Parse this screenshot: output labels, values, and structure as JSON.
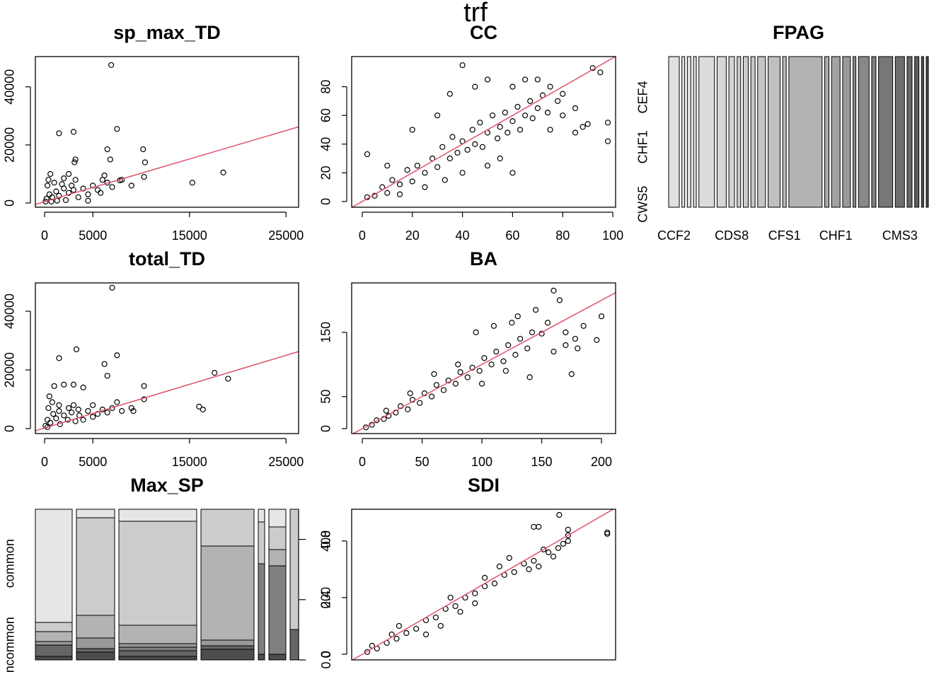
{
  "title": "trf",
  "chart_data": [
    {
      "type": "scatter",
      "title": "sp_max_TD",
      "x": [
        200,
        500,
        800,
        1200,
        300,
        1500,
        2000,
        2500,
        3000,
        3500,
        400,
        600,
        1000,
        1800,
        2200,
        2800,
        3200,
        4000,
        4500,
        5000,
        5500,
        6000,
        6500,
        7000,
        8000,
        9000,
        1500,
        3000,
        3100,
        2500,
        3200,
        6500,
        6800,
        7500,
        10200,
        10400,
        10300,
        15300,
        18500,
        6900,
        2000,
        6200,
        7800,
        100,
        700,
        1300,
        4500,
        5800
      ],
      "values": [
        1500,
        3000,
        2000,
        4000,
        6000,
        2500,
        5000,
        3500,
        4500,
        2000,
        8000,
        10000,
        7000,
        6500,
        1000,
        6000,
        8000,
        5000,
        3000,
        6000,
        4500,
        8000,
        7000,
        5500,
        8000,
        6000,
        24000,
        24500,
        14000,
        10000,
        15000,
        18500,
        15000,
        25500,
        18500,
        14000,
        9000,
        7000,
        10500,
        47500,
        8500,
        9500,
        7800,
        500,
        500,
        800,
        800,
        3500
      ],
      "xlim": [
        -950,
        26300
      ],
      "ylim": [
        -1450,
        50400
      ],
      "xticks": [
        0,
        5000,
        15000,
        25000
      ],
      "yticks": [
        0,
        20000,
        40000
      ],
      "fit": {
        "intercept": 450,
        "slope": 0.98,
        "color": "#DF536B"
      }
    },
    {
      "type": "scatter",
      "title": "CC",
      "x": [
        2,
        5,
        8,
        10,
        12,
        15,
        18,
        20,
        22,
        25,
        28,
        30,
        32,
        35,
        36,
        38,
        40,
        42,
        44,
        45,
        47,
        48,
        50,
        52,
        54,
        55,
        57,
        58,
        60,
        62,
        63,
        65,
        67,
        68,
        70,
        72,
        74,
        75,
        78,
        80,
        85,
        90,
        92,
        95,
        98,
        98,
        2,
        10,
        20,
        30,
        35,
        40,
        45,
        50,
        60,
        65,
        70,
        75,
        80,
        85,
        88,
        15,
        25,
        33,
        40,
        50,
        55,
        60
      ],
      "values": [
        3,
        4,
        10,
        6,
        15,
        12,
        22,
        14,
        25,
        20,
        30,
        24,
        38,
        30,
        45,
        34,
        42,
        36,
        50,
        40,
        55,
        38,
        48,
        60,
        44,
        52,
        62,
        48,
        56,
        66,
        50,
        60,
        70,
        58,
        65,
        74,
        62,
        80,
        70,
        60,
        48,
        54,
        93,
        90,
        55,
        42,
        33,
        25,
        50,
        60,
        75,
        95,
        80,
        85,
        80,
        85,
        85,
        50,
        75,
        65,
        52,
        5,
        10,
        15,
        20,
        25,
        30,
        20
      ],
      "xlim": [
        -4.2,
        101.1
      ],
      "ylim": [
        -4,
        101
      ],
      "xticks": [
        0,
        20,
        40,
        60,
        80,
        100
      ],
      "yticks": [
        0,
        20,
        40,
        60,
        80
      ],
      "fit": {
        "intercept": 0,
        "slope": 1,
        "color": "#DF536B"
      }
    },
    {
      "type": "spineplot",
      "title": "FPAG",
      "categories": [
        "CCF2",
        null,
        null,
        null,
        null,
        null,
        "CDS8",
        null,
        null,
        null,
        null,
        null,
        "CFS1",
        null,
        null,
        "CHF1",
        null,
        null,
        null,
        null,
        null,
        "CMS3",
        null,
        null,
        null,
        null
      ],
      "widths": [
        15,
        4,
        5,
        4,
        22,
        13,
        8,
        5,
        7,
        6,
        11,
        17,
        5,
        47,
        6,
        12,
        11,
        4,
        15,
        6,
        20,
        13,
        7,
        6,
        3,
        3
      ],
      "colors": [
        "#e0e0e0",
        "#e0e0e0",
        "#e0e0e0",
        "#dedede",
        "#dcdcdc",
        "#d6d6d6",
        "#d3d3d3",
        "#cfcfcf",
        "#cccccc",
        "#c9c9c9",
        "#c5c5c5",
        "#bfbfbf",
        "#bbbbbb",
        "#b3b3b3",
        "#aaaaaa",
        "#a3a3a3",
        "#999999",
        "#909090",
        "#888888",
        "#808080",
        "#777777",
        "#6e6e6e",
        "#666666",
        "#5e5e5e",
        "#555555",
        "#4d4d4d"
      ],
      "y_categories": [
        "CWS5",
        "CHF1",
        "CEF4"
      ]
    },
    {
      "type": "scatter",
      "title": "total_TD",
      "x": [
        7000,
        1500,
        3300,
        7500,
        6200,
        6500,
        10300,
        10300,
        16000,
        16400,
        17600,
        19000,
        2000,
        3000,
        4000,
        500,
        1000,
        1500,
        3000,
        5000,
        7500,
        8000,
        9000,
        9200,
        100,
        300,
        600,
        900,
        1200,
        1600,
        2000,
        2400,
        2800,
        3200,
        3600,
        4000,
        4500,
        5000,
        5500,
        6000,
        6500,
        7000,
        400,
        800,
        2500,
        300,
        1500,
        3500
      ],
      "values": [
        48000,
        24000,
        27000,
        25000,
        22000,
        18000,
        14500,
        10000,
        7500,
        6500,
        19000,
        17000,
        15000,
        15000,
        14000,
        11000,
        14500,
        8000,
        8000,
        8000,
        9000,
        6000,
        7000,
        6000,
        1000,
        3000,
        2000,
        5000,
        3500,
        1500,
        4500,
        3000,
        5500,
        2500,
        4500,
        3000,
        6000,
        4000,
        5000,
        6500,
        5500,
        7000,
        7000,
        9000,
        7000,
        500,
        6000,
        6500
      ],
      "xlim": [
        -950,
        26300
      ],
      "ylim": [
        -1690,
        49640
      ],
      "xticks": [
        0,
        5000,
        15000,
        25000
      ],
      "yticks": [
        0,
        20000,
        40000
      ],
      "fit": {
        "intercept": 220,
        "slope": 0.99,
        "color": "#DF536B"
      }
    },
    {
      "type": "scatter",
      "title": "BA",
      "x": [
        3,
        8,
        12,
        18,
        22,
        28,
        32,
        38,
        42,
        48,
        52,
        58,
        62,
        68,
        72,
        78,
        82,
        88,
        92,
        98,
        102,
        108,
        112,
        118,
        122,
        128,
        132,
        138,
        142,
        150,
        160,
        170,
        178,
        180,
        200,
        196,
        160,
        165,
        125,
        120,
        140,
        175,
        95,
        110,
        100,
        80,
        60,
        40,
        20,
        130,
        145,
        155,
        170,
        185
      ],
      "values": [
        2,
        6,
        13,
        15,
        20,
        25,
        35,
        30,
        45,
        40,
        55,
        50,
        68,
        60,
        75,
        70,
        88,
        80,
        95,
        90,
        110,
        100,
        120,
        105,
        130,
        115,
        140,
        125,
        150,
        148,
        120,
        150,
        140,
        125,
        175,
        138,
        215,
        200,
        165,
        90,
        80,
        85,
        150,
        160,
        70,
        100,
        85,
        55,
        28,
        175,
        185,
        165,
        130,
        160
      ],
      "xlim": [
        -8.9,
        211.8
      ],
      "ylim": [
        -7.7,
        227
      ],
      "xticks": [
        0,
        50,
        100,
        150,
        200
      ],
      "yticks": [
        0,
        50,
        150
      ],
      "fit": {
        "intercept": 0,
        "slope": 1,
        "color": "#DF536B"
      }
    },
    {
      "type": "spineplot",
      "title": "Max_SP",
      "widths": [
        52,
        54,
        110,
        75,
        9,
        24,
        12
      ],
      "segments": [
        [
          5,
          16,
          0,
          5,
          14,
          13,
          160
        ],
        [
          11,
          5,
          0,
          15,
          32,
          138,
          12
        ],
        [
          5,
          8,
          5,
          5,
          26,
          147,
          17
        ],
        [
          15,
          5,
          0,
          8,
          133,
          52,
          0
        ],
        [
          8,
          0,
          128,
          0,
          0,
          59,
          18
        ],
        [
          8,
          0,
          125,
          0,
          23,
          32,
          25
        ],
        [
          0,
          43,
          0,
          0,
          0,
          170,
          0
        ]
      ],
      "colors": [
        "#4d4d4d",
        "#666666",
        "#808080",
        "#999999",
        "#b3b3b3",
        "#cccccc",
        "#e6e6e6"
      ],
      "y_categories": [
        "ncommon",
        "common"
      ],
      "y2lim": [
        0,
        1
      ],
      "y2ticks": [
        {
          "value": 0,
          "label": "0.0"
        },
        {
          "value": 0.4,
          "label": "0.4"
        },
        {
          "value": 0.8,
          "label": "0.8"
        }
      ]
    },
    {
      "type": "scatter",
      "title": "SDI",
      "x": [
        10,
        30,
        50,
        70,
        90,
        110,
        130,
        150,
        170,
        190,
        210,
        230,
        250,
        270,
        290,
        310,
        330,
        340,
        350,
        360,
        370,
        380,
        390,
        400,
        410,
        420,
        350,
        360,
        420,
        420,
        500,
        500,
        402,
        130,
        160,
        230,
        300,
        280,
        250,
        180,
        200,
        60,
        20,
        75
      ],
      "values": [
        8,
        20,
        40,
        55,
        75,
        90,
        120,
        130,
        160,
        170,
        200,
        215,
        240,
        250,
        280,
        290,
        320,
        300,
        330,
        310,
        370,
        360,
        345,
        375,
        390,
        400,
        450,
        450,
        440,
        420,
        430,
        425,
        492,
        70,
        100,
        180,
        340,
        310,
        270,
        200,
        150,
        70,
        30,
        100
      ],
      "xlim": [
        -21.7,
        517
      ],
      "ylim": [
        -20,
        512
      ],
      "yticks": [
        0,
        200,
        400
      ],
      "fit": {
        "intercept": 0,
        "slope": 1,
        "color": "#DF536B"
      }
    }
  ]
}
